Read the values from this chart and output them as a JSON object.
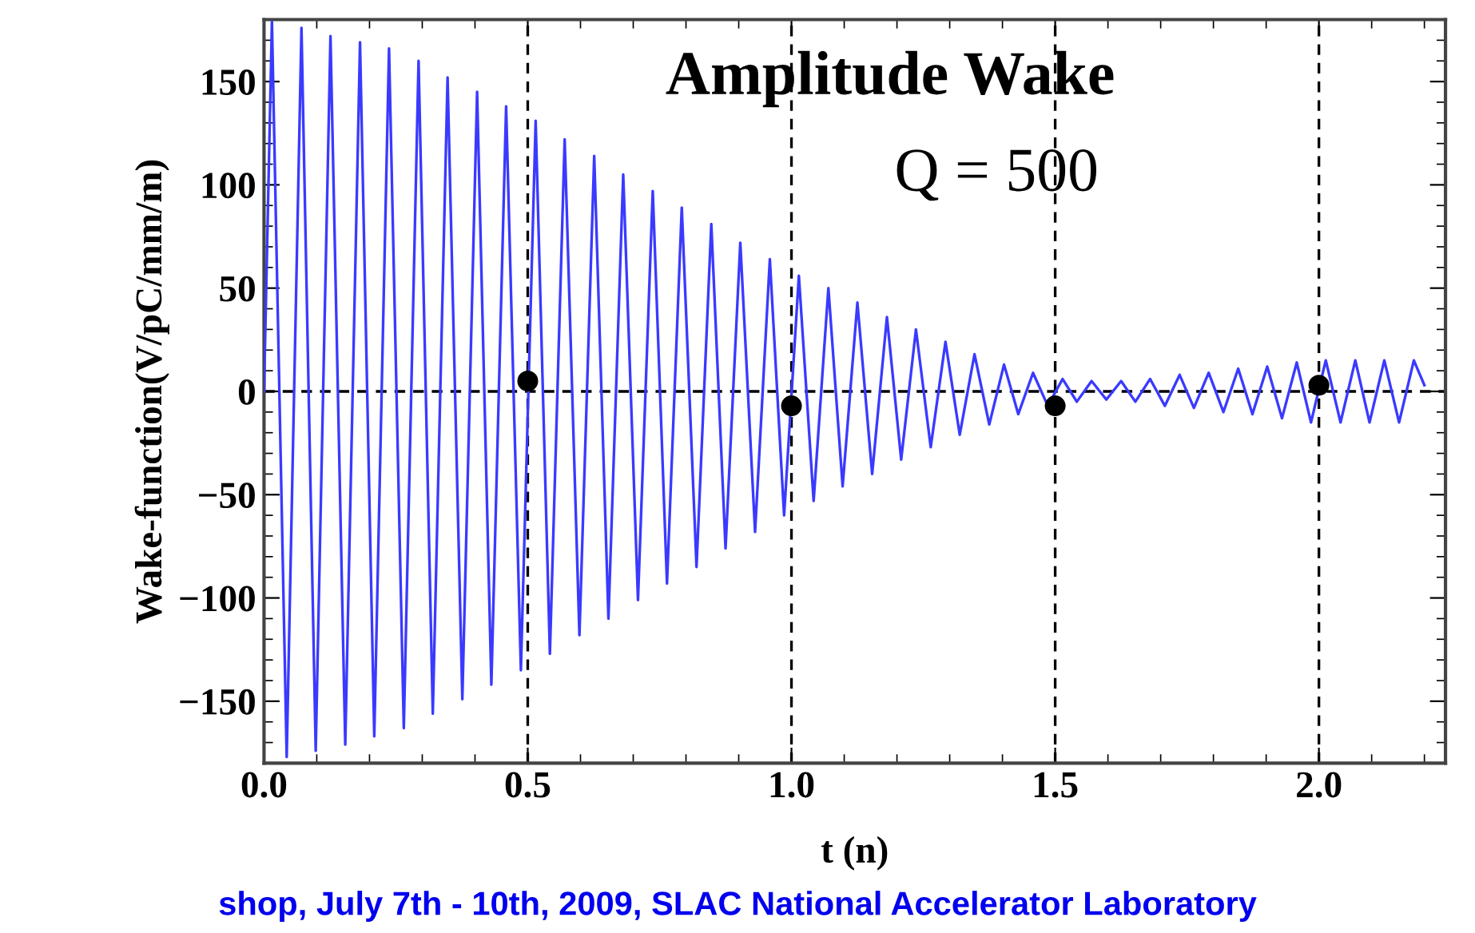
{
  "chart_data": {
    "type": "line",
    "xlabel": "t (n)",
    "ylabel": "Wake-function(V/pC/mm/m)",
    "xlim": [
      0,
      2.24
    ],
    "ylim": [
      -180,
      180
    ],
    "xticks": [
      {
        "value": 0,
        "label": "0.0"
      },
      {
        "value": 0.5,
        "label": "0.5"
      },
      {
        "value": 1,
        "label": "1.0"
      },
      {
        "value": 1.5,
        "label": "1.5"
      },
      {
        "value": 2,
        "label": "2.0"
      }
    ],
    "yticks": [
      -150,
      -100,
      -50,
      0,
      50,
      100,
      150
    ],
    "grid": false,
    "legend": false,
    "series": [
      {
        "color": "#3a3aff",
        "marker": "none",
        "line_style": "solid",
        "x": [
          0,
          0.015,
          0.043,
          0.071,
          0.098,
          0.126,
          0.154,
          0.182,
          0.209,
          0.237,
          0.265,
          0.293,
          0.32,
          0.348,
          0.376,
          0.404,
          0.431,
          0.459,
          0.487,
          0.515,
          0.542,
          0.57,
          0.598,
          0.626,
          0.653,
          0.681,
          0.709,
          0.737,
          0.764,
          0.792,
          0.82,
          0.848,
          0.875,
          0.903,
          0.931,
          0.959,
          0.986,
          1.014,
          1.042,
          1.07,
          1.097,
          1.125,
          1.153,
          1.181,
          1.208,
          1.236,
          1.264,
          1.292,
          1.319,
          1.347,
          1.375,
          1.403,
          1.43,
          1.458,
          1.486,
          1.514,
          1.541,
          1.569,
          1.597,
          1.625,
          1.652,
          1.68,
          1.708,
          1.736,
          1.763,
          1.791,
          1.819,
          1.847,
          1.874,
          1.902,
          1.93,
          1.958,
          1.985,
          2.013,
          2.041,
          2.069,
          2.096,
          2.124,
          2.152,
          2.18,
          2.2
        ],
        "values": [
          0,
          179,
          -177,
          176,
          -174,
          172,
          -171,
          169,
          -167,
          166,
          -163,
          160,
          -156,
          152,
          -149,
          145,
          -142,
          138,
          -135,
          131,
          -127,
          122,
          -118,
          114,
          -110,
          105,
          -101,
          97,
          -93,
          89,
          -85,
          81,
          -76,
          72,
          -68,
          64,
          -60,
          56,
          -53,
          50,
          -46,
          43,
          -40,
          36,
          -33,
          30,
          -27,
          24,
          -21,
          18,
          -16,
          13,
          -11,
          9,
          -7,
          6,
          -5,
          5,
          -4,
          5,
          -5,
          6,
          -7,
          8,
          -8,
          9,
          -10,
          11,
          -11,
          12,
          -13,
          14,
          -15,
          15,
          -15,
          15,
          -15,
          15,
          -15,
          15,
          3
        ]
      },
      {
        "type": "scatter",
        "color": "#000000",
        "marker": "circle",
        "x": [
          0.5,
          1.0,
          1.5,
          2.0
        ],
        "values": [
          5,
          -7,
          -7,
          3
        ]
      }
    ],
    "ref_lines": [
      {
        "axis": "y",
        "value": 0,
        "color": "#000000",
        "line_style": "dashed"
      },
      {
        "axis": "x",
        "value": 0.5,
        "color": "#000000",
        "line_style": "dashed"
      },
      {
        "axis": "x",
        "value": 1.0,
        "color": "#000000",
        "line_style": "dashed"
      },
      {
        "axis": "x",
        "value": 1.5,
        "color": "#000000",
        "line_style": "dashed"
      },
      {
        "axis": "x",
        "value": 2.0,
        "color": "#000000",
        "line_style": "dashed"
      }
    ],
    "annotations": [
      "Amplitude Wake",
      "Q = 500",
      "shop, July 7th - 10th, 2009, SLAC National Accelerator Laboratory"
    ]
  }
}
